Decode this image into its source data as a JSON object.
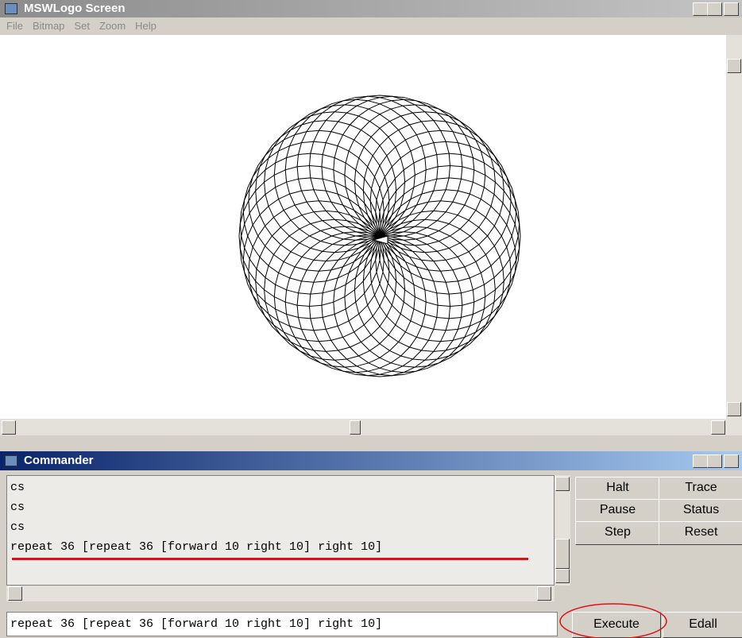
{
  "screen_window": {
    "title": "MSWLogo Screen",
    "menu": [
      "File",
      "Bitmap",
      "Set",
      "Zoom",
      "Help"
    ]
  },
  "commander": {
    "title": "Commander",
    "history": [
      "cs",
      "cs",
      "cs",
      "repeat 36 [repeat 36 [forward 10 right 10] right 10]"
    ],
    "buttons": [
      "Halt",
      "Trace",
      "Pause",
      "Status",
      "Step",
      "Reset"
    ],
    "input": "repeat 36 [repeat 36 [forward 10 right 10] right 10]",
    "execute": "Execute",
    "edall": "Edall"
  }
}
